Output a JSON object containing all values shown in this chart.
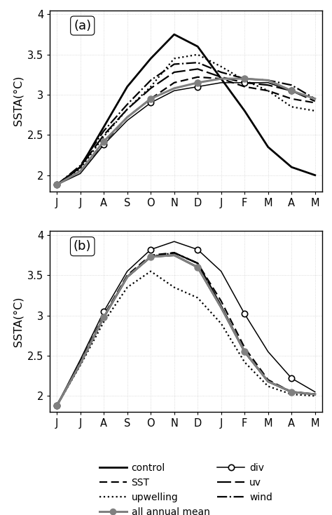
{
  "months": [
    "J",
    "J",
    "A",
    "S",
    "O",
    "N",
    "D",
    "J",
    "F",
    "M",
    "A",
    "M"
  ],
  "panel_a": {
    "control": [
      1.88,
      2.1,
      2.6,
      3.1,
      3.45,
      3.75,
      3.6,
      3.2,
      2.8,
      2.35,
      2.1,
      2.0
    ],
    "SST": [
      1.88,
      2.05,
      2.4,
      2.72,
      2.95,
      3.15,
      3.22,
      3.2,
      3.1,
      3.05,
      2.95,
      2.9
    ],
    "upwelling": [
      1.88,
      2.08,
      2.48,
      2.82,
      3.1,
      3.45,
      3.5,
      3.35,
      3.18,
      3.05,
      2.85,
      2.8
    ],
    "div": [
      1.88,
      2.02,
      2.38,
      2.68,
      2.9,
      3.05,
      3.1,
      3.15,
      3.15,
      3.15,
      3.05,
      2.95
    ],
    "uv": [
      1.88,
      2.1,
      2.5,
      2.82,
      3.08,
      3.28,
      3.32,
      3.22,
      3.15,
      3.12,
      3.05,
      2.92
    ],
    "wind": [
      1.88,
      2.12,
      2.55,
      2.88,
      3.18,
      3.38,
      3.4,
      3.28,
      3.2,
      3.18,
      3.12,
      2.95
    ],
    "all_annual": [
      1.88,
      2.05,
      2.42,
      2.72,
      2.95,
      3.08,
      3.15,
      3.2,
      3.2,
      3.18,
      3.05,
      2.95
    ]
  },
  "panel_b": {
    "control": [
      1.88,
      2.4,
      2.98,
      3.48,
      3.73,
      3.75,
      3.6,
      3.1,
      2.55,
      2.18,
      2.05,
      2.02
    ],
    "SST": [
      1.88,
      2.42,
      3.0,
      3.5,
      3.75,
      3.78,
      3.65,
      3.18,
      2.6,
      2.2,
      2.05,
      2.02
    ],
    "upwelling": [
      1.88,
      2.38,
      2.92,
      3.35,
      3.55,
      3.35,
      3.22,
      2.9,
      2.42,
      2.12,
      2.02,
      2.0
    ],
    "div": [
      1.88,
      2.45,
      3.05,
      3.55,
      3.82,
      3.92,
      3.82,
      3.55,
      3.02,
      2.55,
      2.22,
      2.05
    ],
    "uv": [
      1.88,
      2.4,
      2.98,
      3.48,
      3.73,
      3.78,
      3.65,
      3.12,
      2.55,
      2.18,
      2.05,
      2.02
    ],
    "wind": [
      1.88,
      2.4,
      2.98,
      3.48,
      3.73,
      3.78,
      3.65,
      3.12,
      2.55,
      2.18,
      2.05,
      2.02
    ],
    "all_annual": [
      1.88,
      2.4,
      2.98,
      3.48,
      3.73,
      3.75,
      3.6,
      3.1,
      2.55,
      2.18,
      2.05,
      2.02
    ]
  },
  "ylim": [
    1.8,
    4.05
  ],
  "yticks": [
    2.0,
    2.5,
    3.0,
    3.5,
    4.0
  ],
  "ylabel": "SSTA(°C)",
  "background_color": "#ffffff",
  "grid_color": "#d0d0d0",
  "all_annual_color": "#808080"
}
